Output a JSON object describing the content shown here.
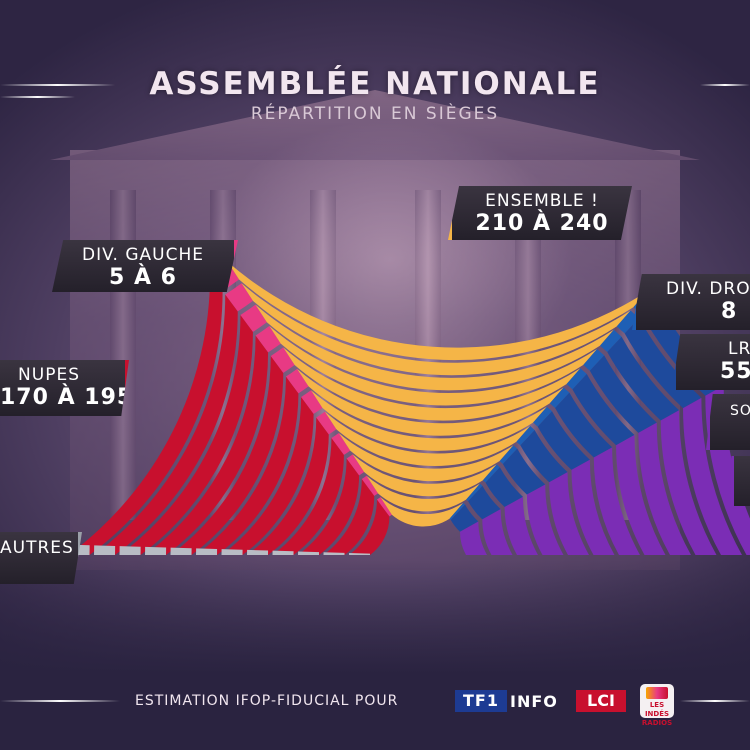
{
  "header": {
    "title": "ASSEMBLÉE NATIONALE",
    "subtitle": "RÉPARTITION EN SIÈGES"
  },
  "colors": {
    "nupes": "#c8102e",
    "div_gauche": "#e83a84",
    "ensemble": "#f5b547",
    "div_droite": "#1e5fb5",
    "lr": "#1e4a9c",
    "rn": "#7b2db5"
  },
  "labels": {
    "ensemble": {
      "name": "ENSEMBLE !",
      "value": "210 À 240"
    },
    "div_gauche": {
      "name": "DIV. GAUCHE",
      "value": "5 À 6"
    },
    "nupes": {
      "name": "NUPES",
      "value": "170 À 195"
    },
    "autres": {
      "name": "AUTRES"
    },
    "div_droite": {
      "name": "DIV. DROITE",
      "value": "8"
    },
    "lr": {
      "name": "LR",
      "value": "55"
    },
    "other": {
      "name": "SO"
    }
  },
  "footer": {
    "source": "ESTIMATION IFOP-FIDUCIAL POUR",
    "tf1": "TF1",
    "info": "INFO",
    "lci": "LCI",
    "indes": "LES INDÉS RADIOS"
  }
}
